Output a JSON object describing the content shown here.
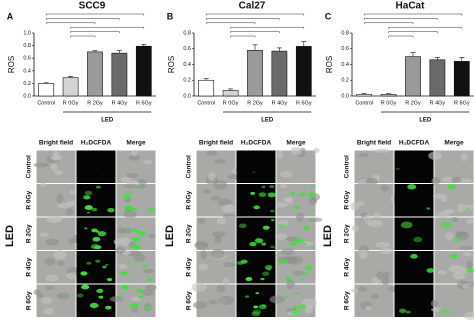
{
  "chart_data": [
    {
      "type": "bar",
      "panel": "A",
      "title": "SCC9",
      "y_label": "ROS",
      "group_label": "LED",
      "categories": [
        "Control",
        "R 0Gy",
        "R 2Gy",
        "R 4Gy",
        "R 6Gy"
      ],
      "values": [
        0.2,
        0.29,
        0.7,
        0.68,
        0.79
      ],
      "errors": [
        0.01,
        0.02,
        0.02,
        0.04,
        0.03
      ],
      "colors": [
        "#ffffff",
        "#d4d4d4",
        "#9a9a9a",
        "#6a6a6a",
        "#111111"
      ],
      "ylim": [
        0,
        1.0
      ],
      "yticks": [
        {
          "value": 0,
          "label": "0.0"
        },
        0.2,
        0.4,
        0.6,
        0.8,
        {
          "value": 1.0,
          "label": "1.0"
        }
      ]
    },
    {
      "type": "bar",
      "panel": "B",
      "title": "Cal27",
      "y_label": "ROS",
      "group_label": "LED",
      "categories": [
        "Control",
        "R 0Gy",
        "R 2Gy",
        "R 4Gy",
        "R 6Gy"
      ],
      "values": [
        0.2,
        0.07,
        0.58,
        0.57,
        0.63
      ],
      "errors": [
        0.02,
        0.02,
        0.07,
        0.04,
        0.06
      ],
      "colors": [
        "#ffffff",
        "#d4d4d4",
        "#9a9a9a",
        "#6a6a6a",
        "#111111"
      ],
      "ylim": [
        0,
        0.8
      ],
      "yticks": [
        {
          "value": 0,
          "label": "0.0"
        },
        0.2,
        0.4,
        0.6,
        0.8
      ]
    },
    {
      "type": "bar",
      "panel": "C",
      "title": "HaCat",
      "y_label": "ROS",
      "group_label": "LED",
      "categories": [
        "Control",
        "R 0Gy",
        "R 2Gy",
        "R 4Gy",
        "R 6Gy"
      ],
      "values": [
        0.02,
        0.02,
        0.5,
        0.46,
        0.44
      ],
      "errors": [
        0.01,
        0.01,
        0.05,
        0.03,
        0.05
      ],
      "colors": [
        "#ffffff",
        "#d4d4d4",
        "#9a9a9a",
        "#6a6a6a",
        "#111111"
      ],
      "ylim": [
        0,
        0.8
      ],
      "yticks": [
        {
          "value": 0,
          "label": "0.0"
        },
        0.2,
        0.4,
        0.6,
        0.8
      ]
    }
  ],
  "micrographs": [
    {
      "group_label": "LED",
      "column_headers": [
        "Bright field",
        "H₂DCFDA",
        "Merge"
      ],
      "row_labels": [
        "Control",
        "R 0Gy",
        "R 2Gy",
        "R 4Gy",
        "R 6Gy"
      ]
    },
    {
      "group_label": "LED",
      "column_headers": [
        "Bright field",
        "H₂DCFDA",
        "Merge"
      ],
      "row_labels": [
        "Control",
        "R 0Gy",
        "R 2Gy",
        "R 4Gy",
        "R 6Gy"
      ]
    },
    {
      "group_label": "LED",
      "column_headers": [
        "Bright field",
        "H₂DCFDA",
        "Merge"
      ],
      "row_labels": [
        "Control",
        "R 0Gy",
        "R 2Gy",
        "R 4Gy",
        "R 6Gy"
      ]
    }
  ]
}
